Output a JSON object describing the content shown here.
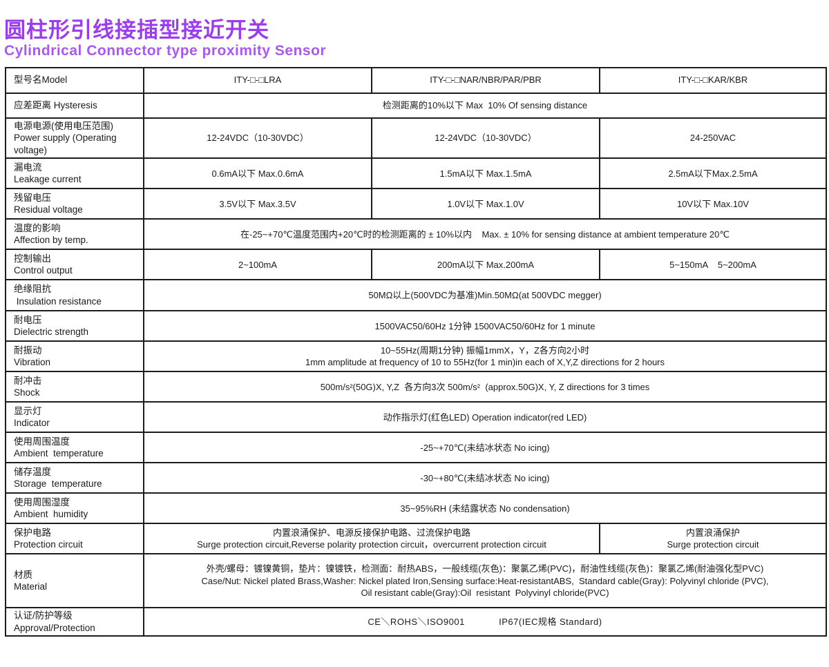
{
  "page": {
    "title_zh": "圆柱形引线接插型接近开关",
    "title_en": "Cylindrical Connector type proximity Sensor",
    "title_zh_color": "#9b3cf0",
    "title_en_color": "#a958f2",
    "border_color": "#1c1c1c"
  },
  "table": {
    "rows": [
      {
        "h": 37,
        "label": [
          "型号名Model"
        ],
        "cells": [
          {
            "span": 1,
            "lines": [
              "ITY-□-□LRA"
            ]
          },
          {
            "span": 1,
            "lines": [
              "ITY-□-□NAR/NBR/PAR/PBR"
            ]
          },
          {
            "span": 1,
            "lines": [
              "ITY-□-□KAR/KBR"
            ]
          }
        ]
      },
      {
        "h": 36,
        "label": [
          "应差距离 Hysteresis"
        ],
        "cells": [
          {
            "span": 3,
            "lines": [
              "检测距离的10%以下 Max  10% Of sensing distance"
            ]
          }
        ]
      },
      {
        "h": 44,
        "label": [
          "电源电源(使用电压范围)",
          "Power supply (Operating voltage)"
        ],
        "cells": [
          {
            "span": 1,
            "lines": [
              "12-24VDC（10-30VDC）"
            ]
          },
          {
            "span": 1,
            "lines": [
              "12-24VDC（10-30VDC）"
            ]
          },
          {
            "span": 1,
            "lines": [
              "24-250VAC"
            ]
          }
        ]
      },
      {
        "h": 44,
        "label": [
          "漏电流",
          "Leakage current"
        ],
        "cells": [
          {
            "span": 1,
            "lines": [
              "0.6mA以下 Max.0.6mA"
            ]
          },
          {
            "span": 1,
            "lines": [
              "1.5mA以下 Max.1.5mA"
            ]
          },
          {
            "span": 1,
            "lines": [
              "2.5mA以下Max.2.5mA"
            ]
          }
        ]
      },
      {
        "h": 44,
        "label": [
          "残留电压",
          "Residual voltage"
        ],
        "cells": [
          {
            "span": 1,
            "lines": [
              "3.5V以下 Max.3.5V"
            ]
          },
          {
            "span": 1,
            "lines": [
              "1.0V以下 Max.1.0V"
            ]
          },
          {
            "span": 1,
            "lines": [
              "10V以下 Max.10V"
            ]
          }
        ]
      },
      {
        "h": 44,
        "label": [
          "温度的影响",
          "Affection by temp."
        ],
        "cells": [
          {
            "span": 3,
            "lines": [
              "在-25~+70℃温度范围内+20℃时的检测距离的 ± 10%以内    Max. ± 10% for sensing distance at ambient temperature 20℃"
            ]
          }
        ]
      },
      {
        "h": 44,
        "label": [
          "控制输出",
          "Control output"
        ],
        "cells": [
          {
            "span": 1,
            "lines": [
              "2~100mA"
            ]
          },
          {
            "span": 1,
            "lines": [
              "200mA以下 Max.200mA"
            ]
          },
          {
            "span": 1,
            "lines": [
              "5~150mA    5~200mA"
            ]
          }
        ]
      },
      {
        "h": 45,
        "label": [
          "绝缘阻抗",
          " Insulation resistance"
        ],
        "cells": [
          {
            "span": 3,
            "lines": [
              "50MΩ以上(500VDC为基准)Min.50MΩ(at 500VDC megger)"
            ]
          }
        ]
      },
      {
        "h": 44,
        "label": [
          "耐电压",
          "Dielectric strength"
        ],
        "cells": [
          {
            "span": 3,
            "lines": [
              "1500VAC50/60Hz 1分钟 1500VAC50/60Hz for 1 minute"
            ]
          }
        ]
      },
      {
        "h": 44,
        "label": [
          "耐振动",
          "Vibration"
        ],
        "cells": [
          {
            "span": 3,
            "lines": [
              "10~55Hz(周期1分钟) 振幅1mmX，Y，Z各方向2小时",
              "1mm amplitude at frequency of 10 to 55Hz(for 1 min)in each of X,Y,Z directions for 2 hours"
            ]
          }
        ]
      },
      {
        "h": 44,
        "label": [
          "耐冲击",
          "Shock"
        ],
        "cells": [
          {
            "span": 3,
            "lines": [
              "500m/s²(50G)X, Y,Z  各方向3次 500m/s²  (approx.50G)X, Y, Z directions for 3 times"
            ]
          }
        ]
      },
      {
        "h": 44,
        "label": [
          "显示灯",
          "Indicator"
        ],
        "cells": [
          {
            "span": 3,
            "lines": [
              "动作指示灯(红色LED) Operation indicator(red LED)"
            ]
          }
        ]
      },
      {
        "h": 44,
        "label": [
          "使用周围温度",
          "Ambient  temperature"
        ],
        "cells": [
          {
            "span": 3,
            "lines": [
              "-25~+70℃(未结冰状态 No icing)"
            ]
          }
        ]
      },
      {
        "h": 44,
        "label": [
          "储存温度",
          "Storage  temperature"
        ],
        "cells": [
          {
            "span": 3,
            "lines": [
              "-30~+80℃(未结冰状态 No icing)"
            ]
          }
        ]
      },
      {
        "h": 44,
        "label": [
          "使用周围湿度",
          "Ambient  humidity"
        ],
        "cells": [
          {
            "span": 3,
            "lines": [
              "35~95%RH (未结露状态 No condensation)"
            ]
          }
        ]
      },
      {
        "h": 44,
        "label": [
          "保护电路",
          "Protection circuit"
        ],
        "cells": [
          {
            "span": 2,
            "lines": [
              "内置浪涌保护、电源反接保护电路、过流保护电路",
              "Surge protection circuit,Reverse polarity protection circuit，overcurrent protection circuit"
            ]
          },
          {
            "span": 1,
            "lines": [
              "内置浪涌保护",
              "Surge protection circuit"
            ]
          }
        ]
      },
      {
        "h": 78,
        "label": [
          "材质",
          "Material"
        ],
        "cells": [
          {
            "span": 3,
            "align": "left",
            "lines": [
              "外壳/螺母：镀镍黄铜，垫片：镍镀铁，检测面：耐热ABS，一般线缆(灰色)：聚氯乙烯(PVC)，耐油性线缆(灰色)：聚氯乙烯(耐油强化型PVC)",
              "Case/Nut: Nickel plated Brass,Washer: Nickel plated Iron,Sensing surface:Heat-resistantABS,  Standard cable(Gray): Polyvinyl chloride (PVC),",
              "Oil resistant cable(Gray):Oil  resistant  Polyvinyl chloride(PVC)"
            ]
          }
        ]
      },
      {
        "h": 38,
        "label": [
          "认证/防护等级",
          "Approval/Protection"
        ],
        "cells": [
          {
            "span": 3,
            "large": true,
            "lines": [
              "CE＼ROHS＼ISO9001            IP67(IEC规格 Standard)"
            ]
          }
        ]
      }
    ]
  }
}
